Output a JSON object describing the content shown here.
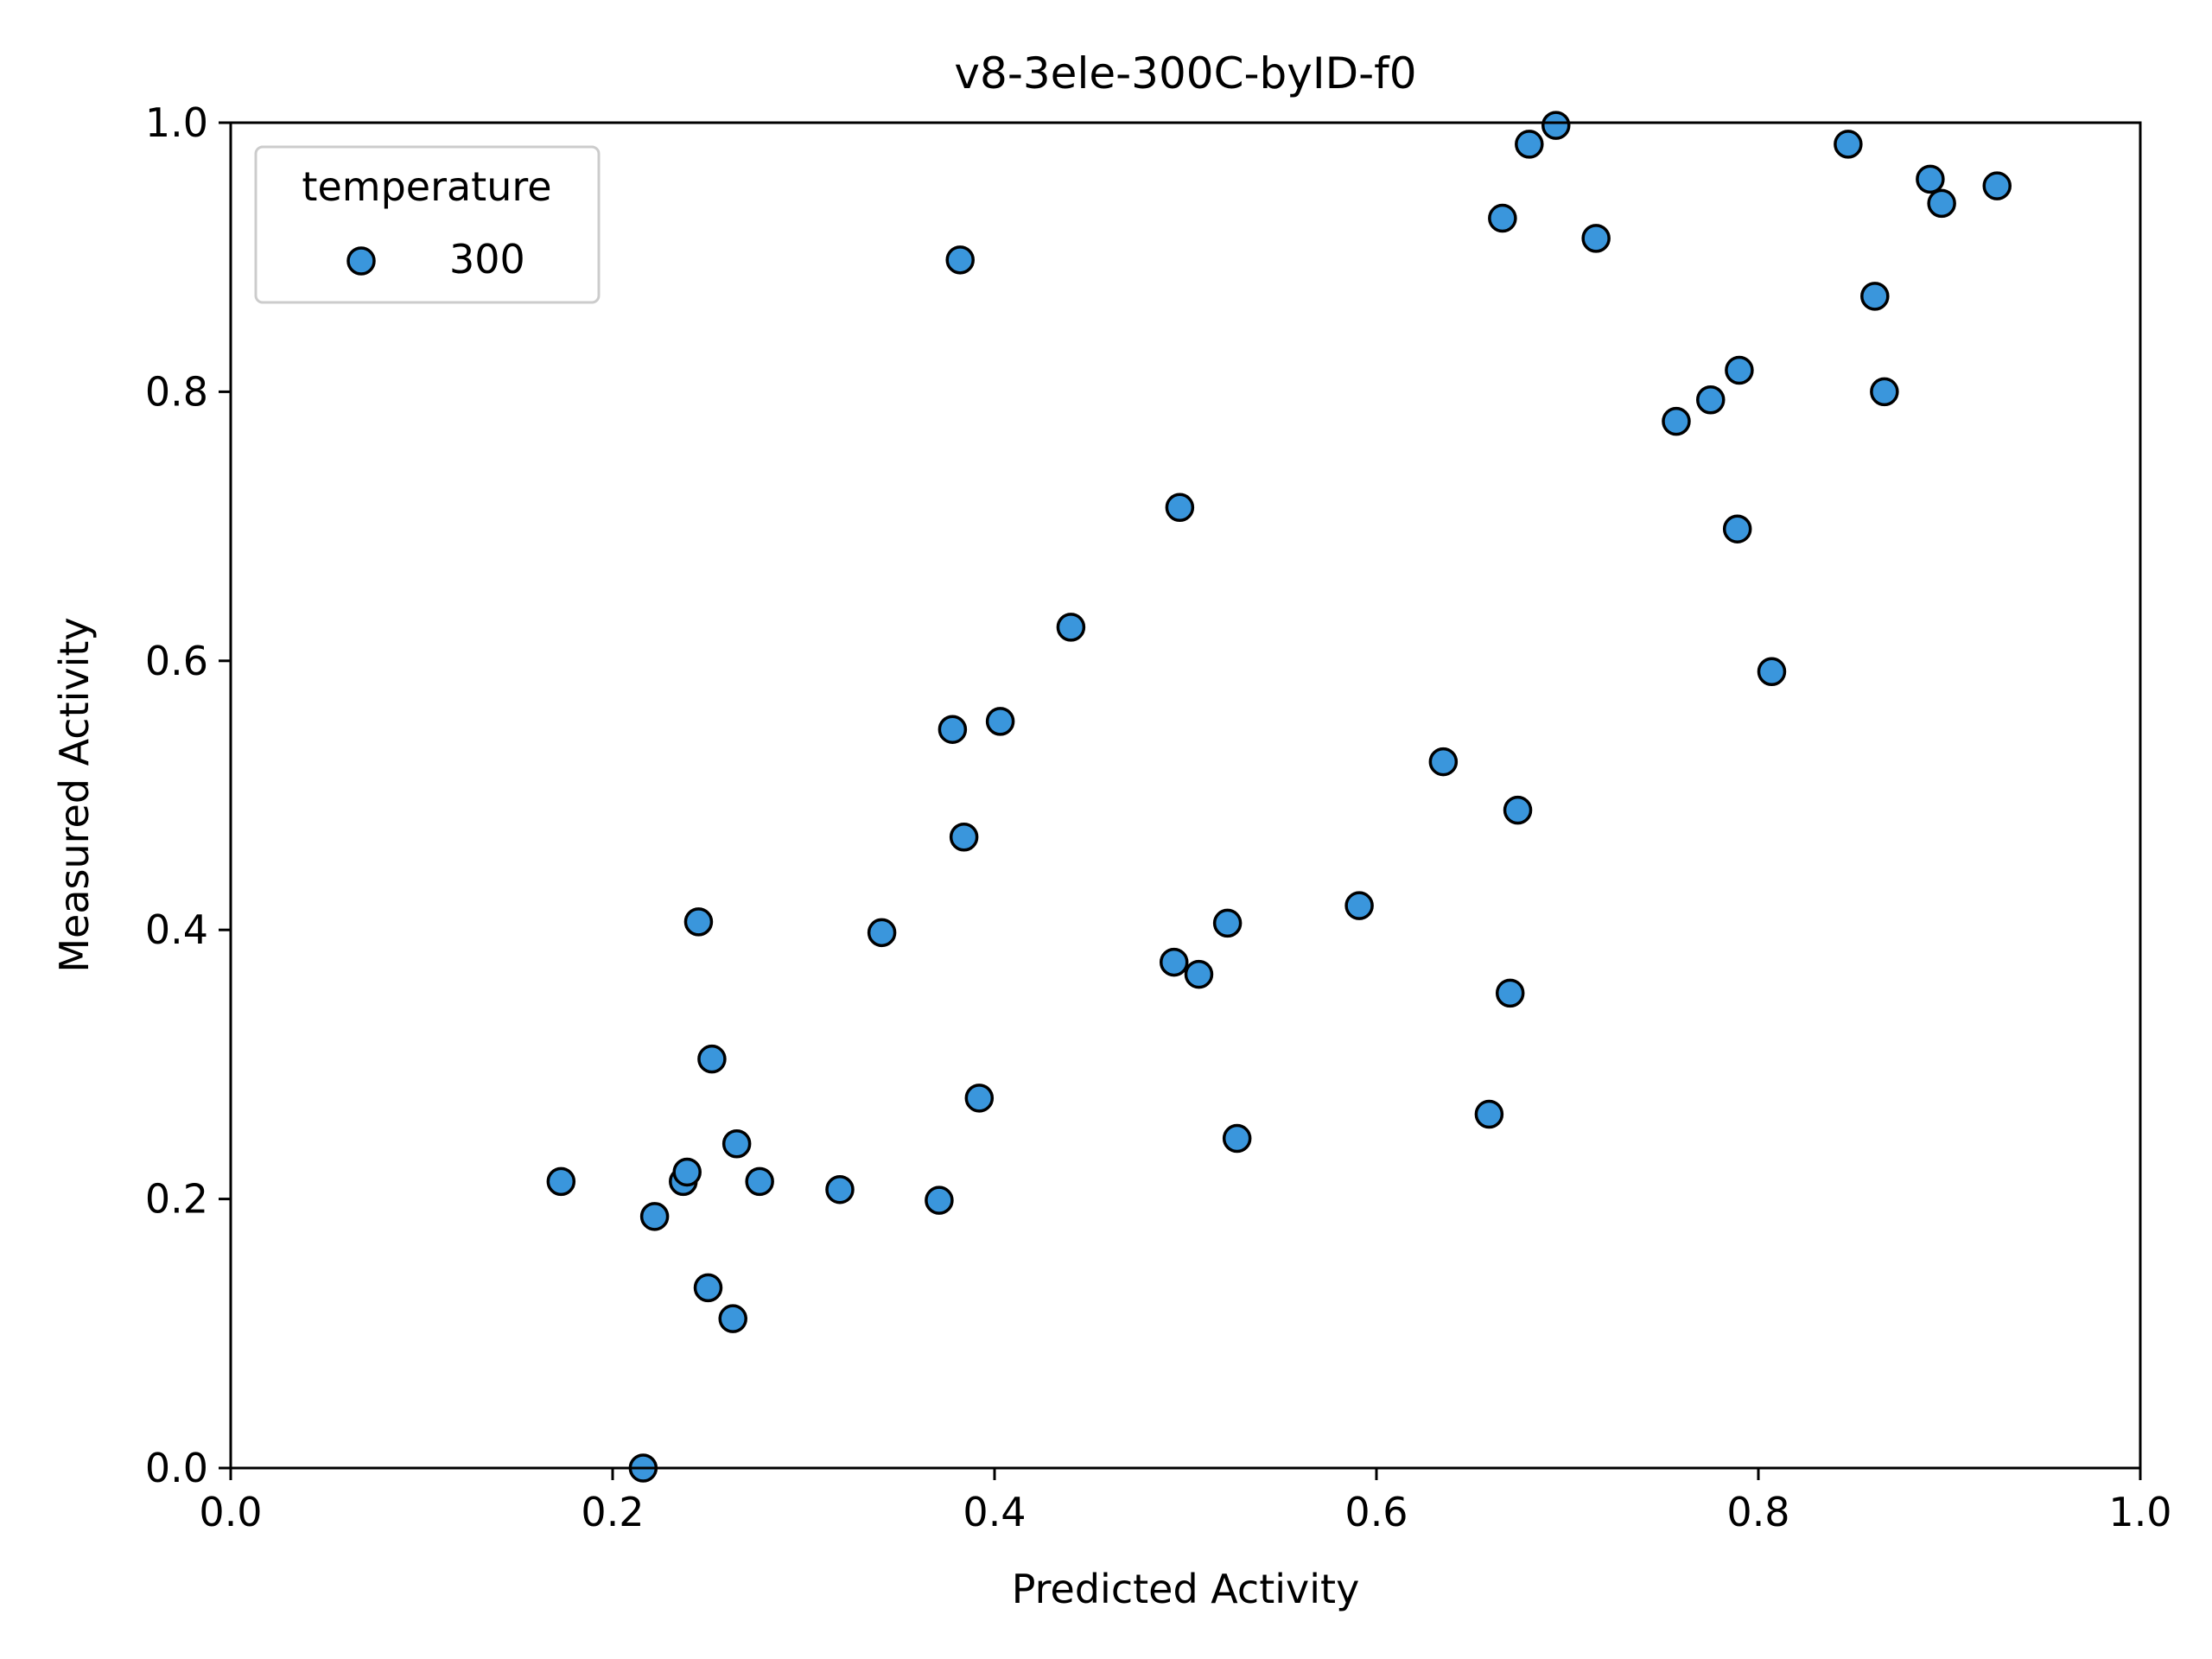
{
  "chart_data": {
    "type": "scatter",
    "title": "v8-3ele-300C-byID-f0",
    "xlabel": "Predicted Activity",
    "ylabel": "Measured Activity",
    "xlim": [
      0.0,
      1.0
    ],
    "ylim": [
      0.0,
      1.0
    ],
    "xticks": [
      "0.0",
      "0.2",
      "0.4",
      "0.6",
      "0.8",
      "1.0"
    ],
    "yticks": [
      "0.0",
      "0.2",
      "0.4",
      "0.6",
      "0.8",
      "1.0"
    ],
    "grid": false,
    "legend": {
      "title": "temperature",
      "placement": "top-left"
    },
    "marker_color": "#3a96dc",
    "marker_edge_color": "#000000",
    "series": [
      {
        "name": "300",
        "points": [
          [
            0.173,
            0.213
          ],
          [
            0.216,
            0.0
          ],
          [
            0.222,
            0.187
          ],
          [
            0.237,
            0.213
          ],
          [
            0.239,
            0.22
          ],
          [
            0.245,
            0.406
          ],
          [
            0.25,
            0.134
          ],
          [
            0.252,
            0.304
          ],
          [
            0.263,
            0.111
          ],
          [
            0.265,
            0.241
          ],
          [
            0.277,
            0.213
          ],
          [
            0.319,
            0.207
          ],
          [
            0.341,
            0.398
          ],
          [
            0.371,
            0.199
          ],
          [
            0.378,
            0.549
          ],
          [
            0.382,
            0.898
          ],
          [
            0.384,
            0.469
          ],
          [
            0.392,
            0.275
          ],
          [
            0.403,
            0.555
          ],
          [
            0.44,
            0.625
          ],
          [
            0.494,
            0.376
          ],
          [
            0.497,
            0.714
          ],
          [
            0.507,
            0.367
          ],
          [
            0.522,
            0.405
          ],
          [
            0.527,
            0.245
          ],
          [
            0.591,
            0.418
          ],
          [
            0.635,
            0.525
          ],
          [
            0.659,
            0.263
          ],
          [
            0.666,
            0.929
          ],
          [
            0.67,
            0.353
          ],
          [
            0.674,
            0.489
          ],
          [
            0.68,
            0.984
          ],
          [
            0.694,
            0.998
          ],
          [
            0.715,
            0.914
          ],
          [
            0.757,
            0.778
          ],
          [
            0.775,
            0.794
          ],
          [
            0.789,
            0.698
          ],
          [
            0.79,
            0.816
          ],
          [
            0.807,
            0.592
          ],
          [
            0.847,
            0.984
          ],
          [
            0.861,
            0.871
          ],
          [
            0.866,
            0.8
          ],
          [
            0.89,
            0.958
          ],
          [
            0.896,
            0.94
          ],
          [
            0.925,
            0.953
          ]
        ]
      }
    ]
  }
}
